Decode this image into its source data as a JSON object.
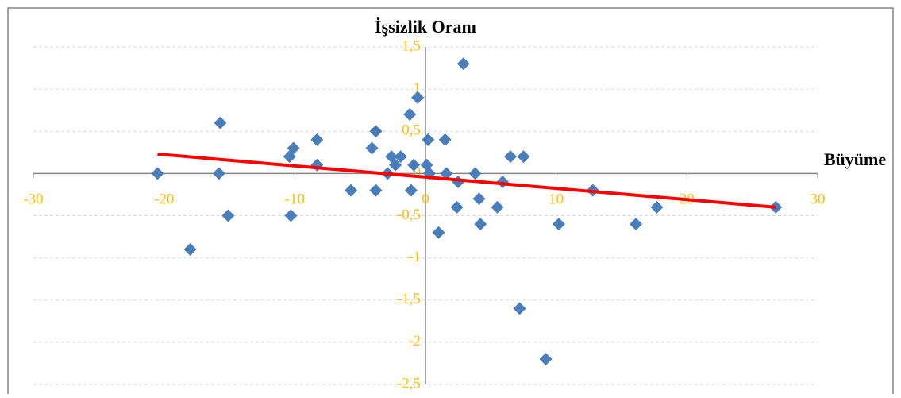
{
  "chart_data": {
    "type": "scatter",
    "title": "İşsizlik Oranı",
    "x_label": "Büyüme",
    "xlim": [
      -30,
      30
    ],
    "xticks": [
      -30,
      -20,
      -10,
      0,
      10,
      20,
      30
    ],
    "ylim": [
      -2.5,
      1.5
    ],
    "yticks": [
      {
        "value": -2.5,
        "label": "-2,5"
      },
      -2,
      {
        "value": -1.5,
        "label": "-1,5"
      },
      -1,
      {
        "value": -0.5,
        "label": "-0,5"
      },
      0,
      {
        "value": 0.5,
        "label": "0,5"
      },
      1,
      {
        "value": 1.5,
        "label": "1,5"
      }
    ],
    "grid": true,
    "series": [
      {
        "color": "#4a7ebb",
        "x": [
          -20.5,
          -18.0,
          -15.7,
          -15.8,
          -15.1,
          -10.3,
          -10.4,
          -10.1,
          -8.3,
          -8.3,
          -5.7,
          -4.1,
          -3.8,
          -3.8,
          -2.9,
          -2.6,
          -2.3,
          -1.9,
          -1.2,
          -1.1,
          -0.9,
          -0.6,
          0.2,
          0.1,
          0.3,
          1.5,
          1.6,
          1.0,
          2.4,
          2.5,
          2.9,
          3.8,
          4.1,
          4.2,
          5.5,
          5.9,
          6.5,
          7.5,
          7.2,
          9.2,
          10.2,
          12.8,
          16.1,
          17.7,
          26.8
        ],
        "values": [
          0,
          -0.9,
          0.6,
          0,
          -0.5,
          -0.5,
          0.2,
          0.3,
          0.4,
          0.1,
          -0.2,
          0.3,
          -0.2,
          0.5,
          0,
          0.2,
          0.1,
          0.2,
          0.7,
          -0.2,
          0.1,
          0.9,
          0.4,
          0.1,
          0,
          0.4,
          0,
          -0.7,
          -0.4,
          -0.1,
          1.3,
          0,
          -0.3,
          -0.6,
          -0.4,
          -0.1,
          0.2,
          0.2,
          -1.6,
          -2.2,
          -0.6,
          -0.2,
          -0.6,
          -0.4,
          -0.4
        ]
      }
    ],
    "trendline": {
      "color": "#ff0000",
      "x": [
        -20.5,
        26.8
      ],
      "values": [
        0.23,
        -0.4
      ]
    }
  }
}
